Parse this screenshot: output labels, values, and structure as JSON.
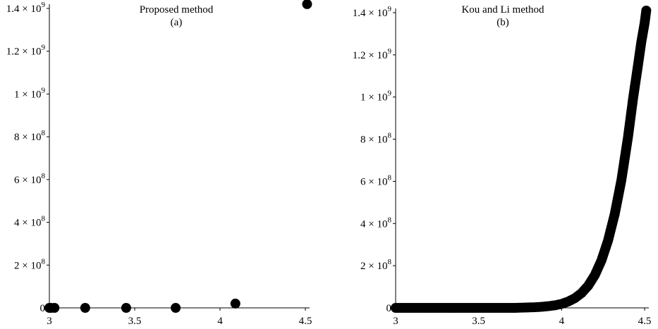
{
  "chart_data": [
    {
      "type": "scatter",
      "title": "Proposed method",
      "subtitle": "(a)",
      "xlim": [
        3,
        4.5
      ],
      "ylim": [
        0,
        1400000000.0
      ],
      "x_ticks": [
        {
          "value": 3,
          "label": "3"
        },
        {
          "value": 3.5,
          "label": "3.5"
        },
        {
          "value": 4,
          "label": "4"
        },
        {
          "value": 4.5,
          "label": "4.5"
        }
      ],
      "y_ticks": [
        {
          "value": 0,
          "mantissa": "0",
          "exponent": ""
        },
        {
          "value": 200000000.0,
          "mantissa": "2 × 10",
          "exponent": "8"
        },
        {
          "value": 400000000.0,
          "mantissa": "4 × 10",
          "exponent": "8"
        },
        {
          "value": 600000000.0,
          "mantissa": "6 × 10",
          "exponent": "8"
        },
        {
          "value": 800000000.0,
          "mantissa": "8 × 10",
          "exponent": "8"
        },
        {
          "value": 1000000000.0,
          "mantissa": "1 × 10",
          "exponent": "9"
        },
        {
          "value": 1200000000.0,
          "mantissa": "1.2 × 10",
          "exponent": "9"
        },
        {
          "value": 1400000000.0,
          "mantissa": "1.4 × 10",
          "exponent": "9"
        }
      ],
      "grid": false,
      "marker_color": "#000000",
      "points": [
        {
          "x": 3.0,
          "y": 0
        },
        {
          "x": 3.01,
          "y": 0
        },
        {
          "x": 3.03,
          "y": 0
        },
        {
          "x": 3.21,
          "y": 0
        },
        {
          "x": 3.45,
          "y": 0
        },
        {
          "x": 3.74,
          "y": 0
        },
        {
          "x": 4.09,
          "y": 20000000.0
        },
        {
          "x": 4.51,
          "y": 1420000000.0
        }
      ]
    },
    {
      "type": "scatter",
      "title": "Kou and Li method",
      "subtitle": "(b)",
      "xlim": [
        3,
        4.5
      ],
      "ylim": [
        0,
        1400000000.0
      ],
      "x_ticks": [
        {
          "value": 3,
          "label": "3"
        },
        {
          "value": 3.5,
          "label": "3.5"
        },
        {
          "value": 4,
          "label": "4"
        },
        {
          "value": 4.5,
          "label": "4.5"
        }
      ],
      "y_ticks": [
        {
          "value": 0,
          "mantissa": "0",
          "exponent": ""
        },
        {
          "value": 200000000.0,
          "mantissa": "2 × 10",
          "exponent": "8"
        },
        {
          "value": 400000000.0,
          "mantissa": "4 × 10",
          "exponent": "8"
        },
        {
          "value": 600000000.0,
          "mantissa": "6 × 10",
          "exponent": "8"
        },
        {
          "value": 800000000.0,
          "mantissa": "8 × 10",
          "exponent": "8"
        },
        {
          "value": 1000000000.0,
          "mantissa": "1 × 10",
          "exponent": "9"
        },
        {
          "value": 1200000000.0,
          "mantissa": "1.2 × 10",
          "exponent": "9"
        },
        {
          "value": 1400000000.0,
          "mantissa": "1.4 × 10",
          "exponent": "9"
        }
      ],
      "grid": false,
      "marker_color": "#000000",
      "points": [
        {
          "x": 3.0,
          "y": 0
        },
        {
          "x": 3.04,
          "y": 0
        },
        {
          "x": 3.08,
          "y": 0
        },
        {
          "x": 3.12,
          "y": 0
        },
        {
          "x": 3.16,
          "y": 0
        },
        {
          "x": 3.2,
          "y": 0
        },
        {
          "x": 3.24,
          "y": 0
        },
        {
          "x": 3.28,
          "y": 0
        },
        {
          "x": 3.32,
          "y": 0
        },
        {
          "x": 3.36,
          "y": 0
        },
        {
          "x": 3.4,
          "y": 0
        },
        {
          "x": 3.44,
          "y": 0
        },
        {
          "x": 3.48,
          "y": 0
        },
        {
          "x": 3.52,
          "y": 0
        },
        {
          "x": 3.56,
          "y": 0
        },
        {
          "x": 3.6,
          "y": 0
        },
        {
          "x": 3.64,
          "y": 0
        },
        {
          "x": 3.68,
          "y": 0
        },
        {
          "x": 3.72,
          "y": 0
        },
        {
          "x": 3.76,
          "y": 1000000.0
        },
        {
          "x": 3.8,
          "y": 2000000.0
        },
        {
          "x": 3.84,
          "y": 3000000.0
        },
        {
          "x": 3.88,
          "y": 5000000.0
        },
        {
          "x": 3.92,
          "y": 8000000.0
        },
        {
          "x": 3.96,
          "y": 12000000.0
        },
        {
          "x": 4.0,
          "y": 19000000.0
        },
        {
          "x": 4.04,
          "y": 30000000.0
        },
        {
          "x": 4.08,
          "y": 46000000.0
        },
        {
          "x": 4.12,
          "y": 70000000.0
        },
        {
          "x": 4.16,
          "y": 105000000.0
        },
        {
          "x": 4.2,
          "y": 155000000.0
        },
        {
          "x": 4.24,
          "y": 225000000.0
        },
        {
          "x": 4.28,
          "y": 320000000.0
        },
        {
          "x": 4.32,
          "y": 445000000.0
        },
        {
          "x": 4.36,
          "y": 605000000.0
        },
        {
          "x": 4.4,
          "y": 810000000.0
        },
        {
          "x": 4.43,
          "y": 990000000.0
        },
        {
          "x": 4.46,
          "y": 1150000000.0
        },
        {
          "x": 4.48,
          "y": 1260000000.0
        },
        {
          "x": 4.5,
          "y": 1350000000.0
        },
        {
          "x": 4.51,
          "y": 1410000000.0
        }
      ]
    }
  ]
}
